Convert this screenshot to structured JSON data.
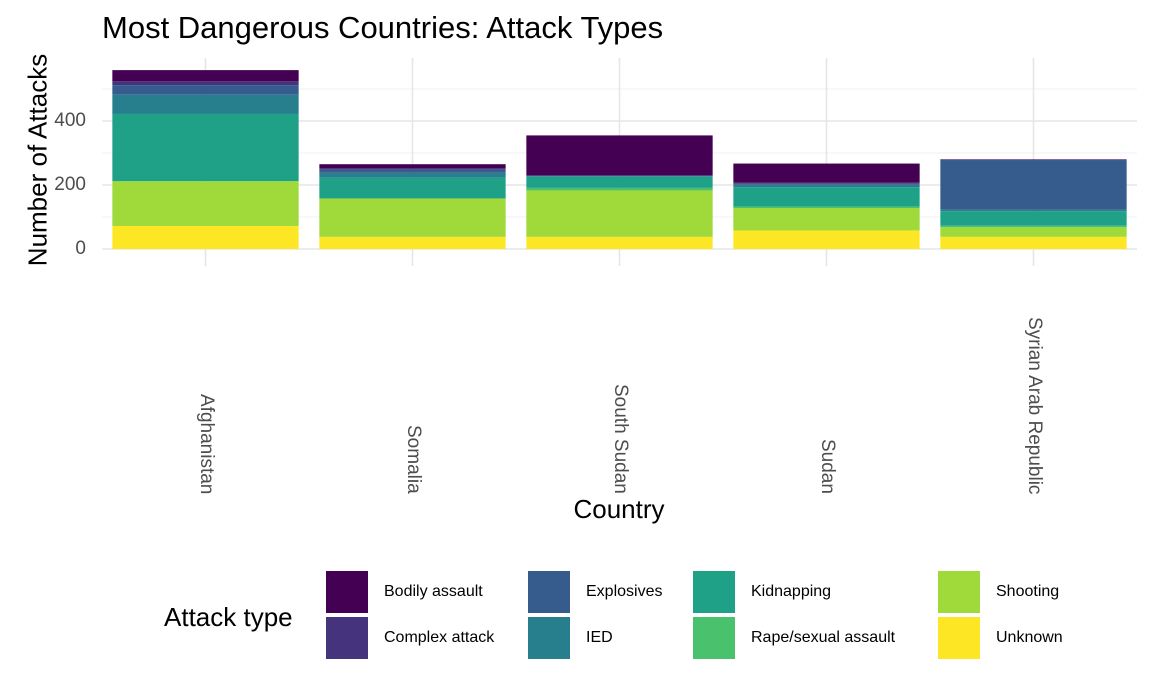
{
  "chart_data": {
    "type": "bar",
    "stacked": true,
    "title": "Most Dangerous Countries: Attack Types",
    "xlabel": "Country",
    "ylabel": "Number of Attacks",
    "categories": [
      "Afghanistan",
      "Somalia",
      "South Sudan",
      "Sudan",
      "Syrian Arab Republic"
    ],
    "ylim": [
      0,
      560
    ],
    "yticks": [
      0,
      200,
      400
    ],
    "grid": true,
    "legend_title": "Attack type",
    "legend_position": "bottom",
    "series": [
      {
        "name": "Bodily assault",
        "color": "#440154",
        "values": [
          35,
          12,
          125,
          60,
          2
        ]
      },
      {
        "name": "Complex attack",
        "color": "#46337E",
        "values": [
          12,
          5,
          0,
          3,
          0
        ]
      },
      {
        "name": "Explosives",
        "color": "#365C8D",
        "values": [
          30,
          10,
          2,
          3,
          155
        ]
      },
      {
        "name": "IED",
        "color": "#277F8E",
        "values": [
          60,
          15,
          2,
          8,
          5
        ]
      },
      {
        "name": "Kidnapping",
        "color": "#1FA187",
        "values": [
          210,
          65,
          35,
          60,
          45
        ]
      },
      {
        "name": "Rape/sexual assault",
        "color": "#4AC16D",
        "values": [
          0,
          0,
          8,
          5,
          5
        ]
      },
      {
        "name": "Shooting",
        "color": "#9FDA3A",
        "values": [
          140,
          120,
          145,
          70,
          30
        ]
      },
      {
        "name": "Unknown",
        "color": "#FDE725",
        "values": [
          72,
          38,
          38,
          58,
          38
        ]
      }
    ]
  }
}
